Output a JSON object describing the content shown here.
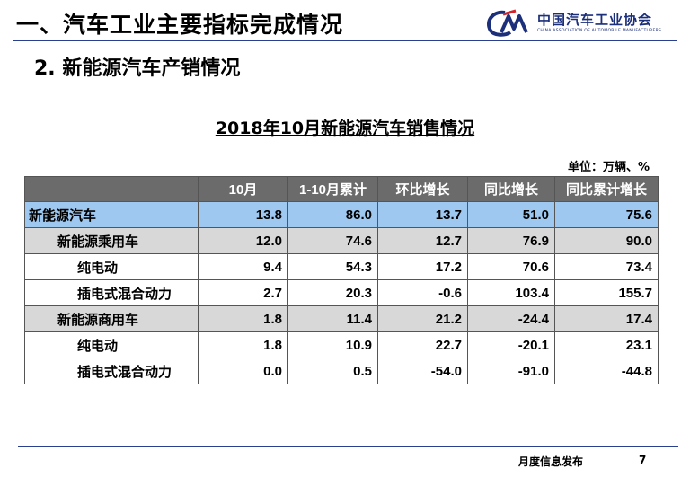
{
  "header": {
    "title": "一、汽车工业主要指标完成情况",
    "logo_cn": "中国汽车工业协会",
    "logo_en": "CHINA ASSOCIATION OF AUTOMOBILE MANUFACTURERS"
  },
  "subtitle": "2. 新能源汽车产销情况",
  "table": {
    "title": "2018年10月新能源汽车销售情况",
    "unit": "单位：万辆、%",
    "columns": [
      "",
      "10月",
      "1-10月累计",
      "环比增长",
      "同比增长",
      "同比累计增长"
    ],
    "rows": [
      {
        "name": "新能源汽车",
        "values": [
          "13.8",
          "86.0",
          "13.7",
          "51.0",
          "75.6"
        ]
      },
      {
        "name": "新能源乘用车",
        "values": [
          "12.0",
          "74.6",
          "12.7",
          "76.9",
          "90.0"
        ]
      },
      {
        "name": "纯电动",
        "values": [
          "9.4",
          "54.3",
          "17.2",
          "70.6",
          "73.4"
        ]
      },
      {
        "name": "插电式混合动力",
        "values": [
          "2.7",
          "20.3",
          "-0.6",
          "103.4",
          "155.7"
        ]
      },
      {
        "name": "新能源商用车",
        "values": [
          "1.8",
          "11.4",
          "21.2",
          "-24.4",
          "17.4"
        ]
      },
      {
        "name": "纯电动",
        "values": [
          "1.8",
          "10.9",
          "22.7",
          "-20.1",
          "23.1"
        ]
      },
      {
        "name": "插电式混合动力",
        "values": [
          "0.0",
          "0.5",
          "-54.0",
          "-91.0",
          "-44.8"
        ]
      }
    ]
  },
  "footer": {
    "text": "月度信息发布",
    "page": "7"
  },
  "colors": {
    "header_row": "#6b6b6b",
    "total_row": "#9ec8ef",
    "category_row": "#d8d8d8",
    "brand": "#1b2f7a"
  }
}
